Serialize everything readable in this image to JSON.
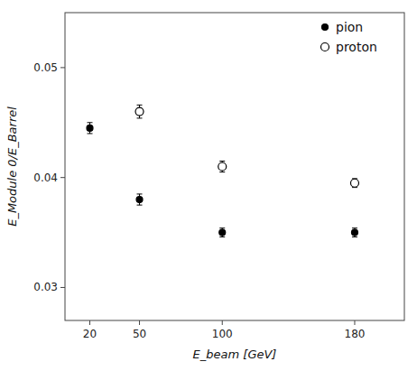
{
  "chart_data": {
    "type": "scatter",
    "xlabel": "E_beam [GeV]",
    "ylabel": "E_Module 0/E_Barrel",
    "series": [
      {
        "name": "pion",
        "color": "#000000",
        "marker": "circle",
        "x": [
          20,
          50,
          100,
          180
        ],
        "values": [
          0.0445,
          0.038,
          0.035,
          0.035
        ],
        "errors": [
          0.0005,
          0.0005,
          0.0004,
          0.0004
        ]
      },
      {
        "name": "proton",
        "color": "#000000",
        "marker": "open-circle",
        "x": [
          50,
          100,
          180
        ],
        "values": [
          0.046,
          0.041,
          0.0395
        ],
        "errors": [
          0.0006,
          0.0005,
          0.0004
        ]
      }
    ],
    "xlim": [
      5,
      210
    ],
    "ylim": [
      0.027,
      0.055
    ],
    "xticks": [
      20,
      50,
      100,
      180
    ],
    "yticks": [
      0.03,
      0.04,
      0.05
    ],
    "grid": false,
    "legend": "upper right"
  }
}
